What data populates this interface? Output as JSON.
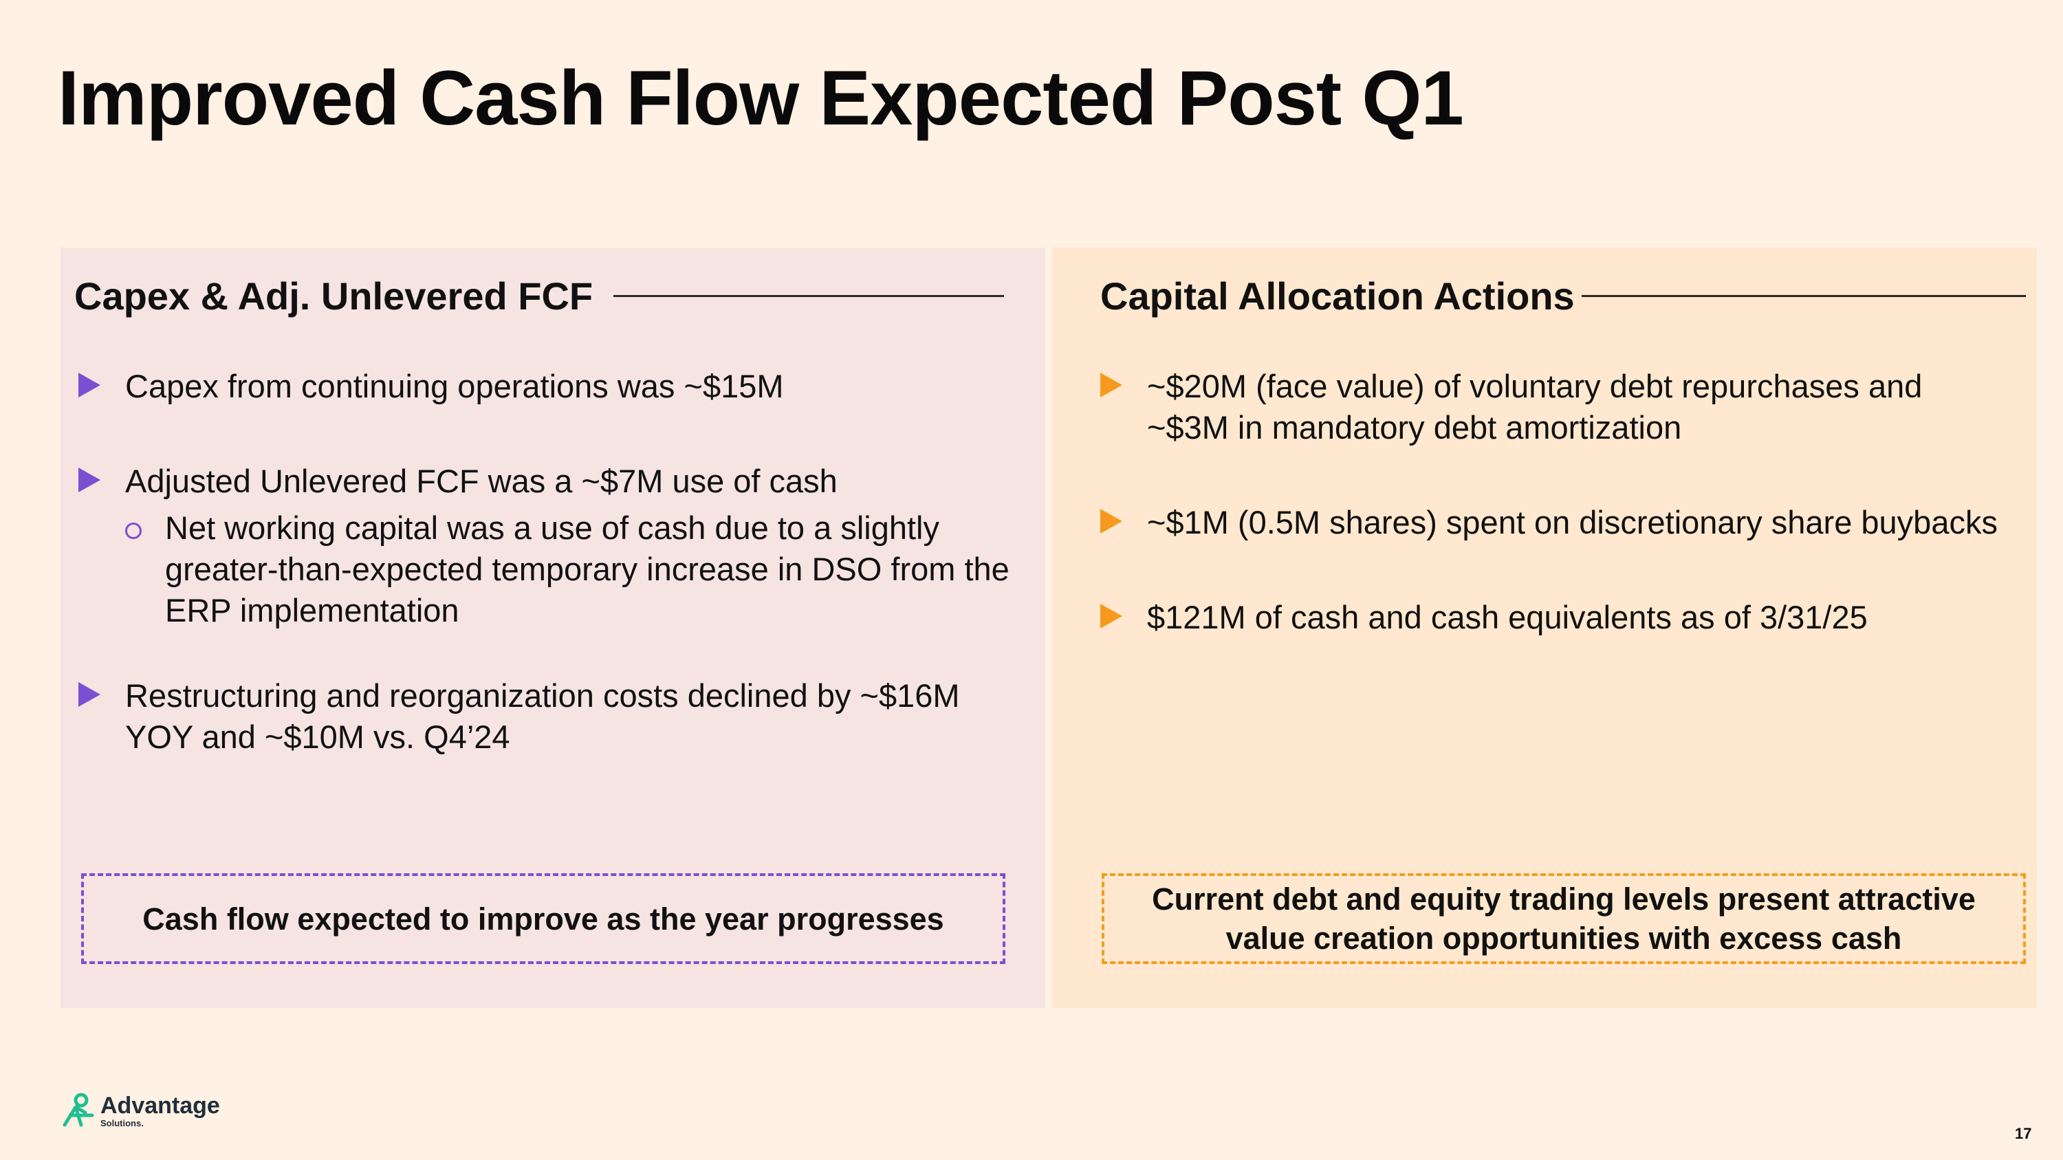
{
  "slide": {
    "title": "Improved Cash Flow Expected Post Q1",
    "page_number": "17"
  },
  "left_panel": {
    "heading": "Capex & Adj. Unlevered FCF",
    "bullets": [
      {
        "text": "Capex from continuing operations was ~$15M"
      },
      {
        "text": "Adjusted Unlevered FCF was a ~$7M use of cash",
        "sub": "Net working capital was a use of cash due to a slightly greater-than-expected temporary increase in DSO from the ERP implementation"
      },
      {
        "text": "Restructuring and reorganization costs declined by ~$16M YOY and ~$10M vs. Q4’24"
      }
    ],
    "callout": "Cash flow expected to improve as the year progresses",
    "accent_color": "#7a4fd1"
  },
  "right_panel": {
    "heading": "Capital Allocation Actions",
    "bullets": [
      {
        "text": "~$20M (face value) of voluntary debt repurchases and ~$3M in mandatory debt amortization"
      },
      {
        "text": "~$1M (0.5M shares) spent on discretionary share buybacks"
      },
      {
        "text": "$121M of cash and cash equivalents as of 3/31/25"
      }
    ],
    "callout": "Current debt and equity trading levels present attractive value creation opportunities with excess cash",
    "accent_color": "#f59a1e"
  },
  "logo": {
    "brand": "Advantage",
    "sub": "Solutions.",
    "icon": "advantage-logo-icon",
    "color": "#1fbf8f"
  }
}
